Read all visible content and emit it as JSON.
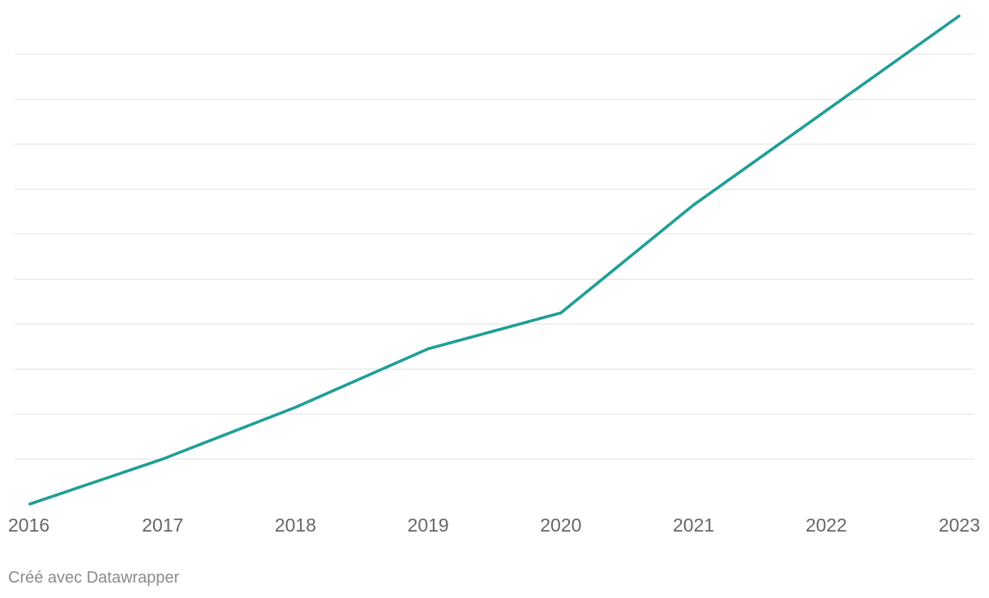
{
  "chart_data": {
    "type": "line",
    "title": "",
    "xlabel": "",
    "ylabel": "",
    "x": [
      "2016",
      "2017",
      "2018",
      "2019",
      "2020",
      "2021",
      "2022",
      "2023"
    ],
    "series": [
      {
        "name": "",
        "color": "#1f9e97",
        "values": [
          0,
          10,
          21.5,
          34.5,
          42.5,
          66.5,
          87.5,
          108.5
        ]
      }
    ],
    "ylim": [
      0,
      100
    ],
    "gridlines": [
      10,
      20,
      30,
      40,
      50,
      60,
      70,
      80,
      90,
      100
    ],
    "grid": true
  },
  "credit": {
    "text": "Créé avec Datawrapper"
  }
}
